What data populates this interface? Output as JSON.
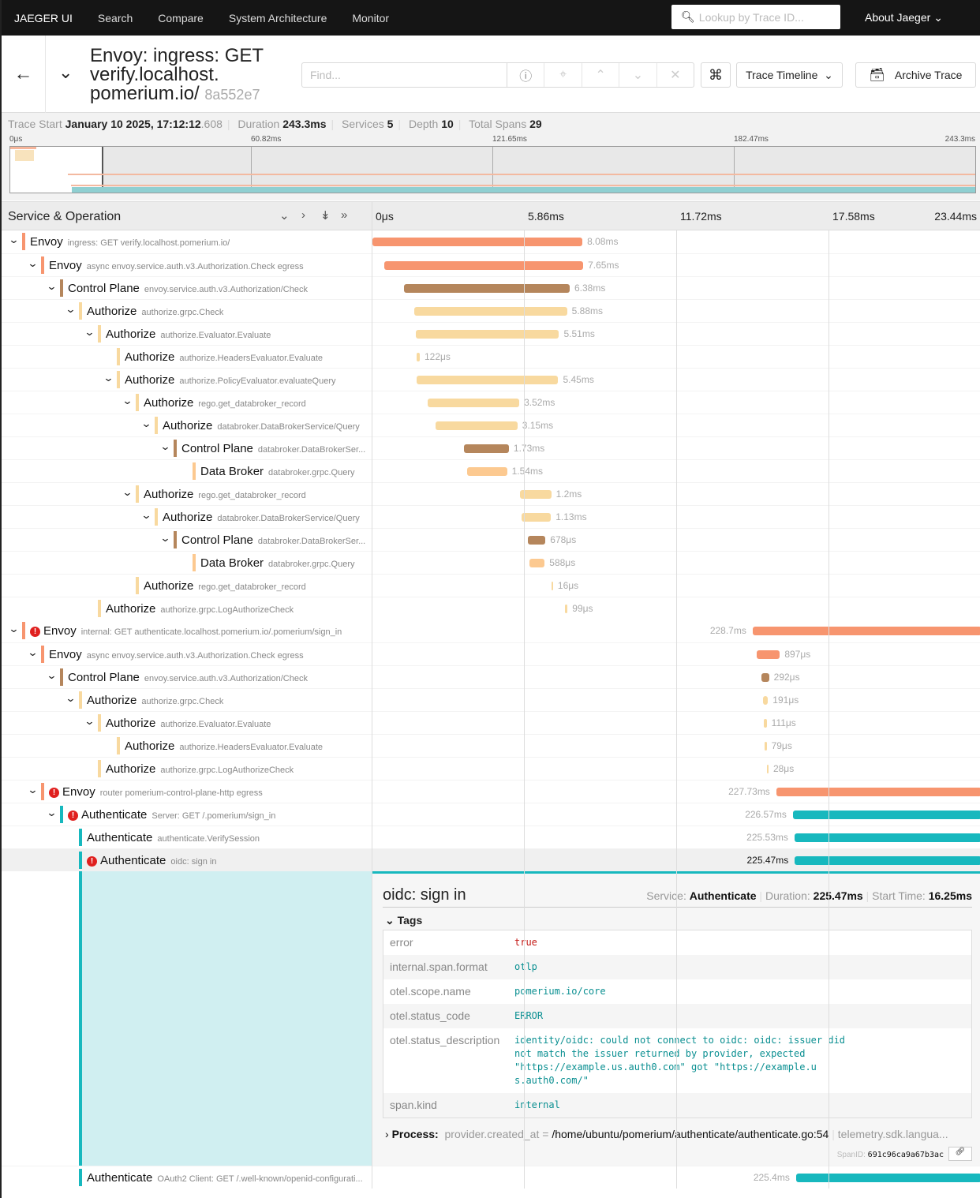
{
  "nav": {
    "brand": "JAEGER UI",
    "links": [
      "Search",
      "Compare",
      "System Architecture",
      "Monitor"
    ],
    "lookup_placeholder": "Lookup by Trace ID...",
    "about": "About Jaeger"
  },
  "header": {
    "title": "Envoy: ingress: GET verify.localhost. pomerium.io/",
    "trace_id": "8a552e7",
    "find_placeholder": "Find...",
    "view_select": "Trace Timeline",
    "archive": "Archive Trace"
  },
  "summary": {
    "trace_start_label": "Trace Start",
    "trace_start": "January 10 2025, 17:12:12",
    "trace_start_ms": ".608",
    "duration_label": "Duration",
    "duration": "243.3ms",
    "services_label": "Services",
    "services": "5",
    "depth_label": "Depth",
    "depth": "10",
    "spans_label": "Total Spans",
    "spans": "29"
  },
  "minimap": {
    "ticks": [
      "0μs",
      "60.82ms",
      "121.65ms",
      "182.47ms",
      "243.3ms"
    ]
  },
  "timeline": {
    "column_title": "Service & Operation",
    "ticks": [
      "0μs",
      "5.86ms",
      "11.72ms",
      "17.58ms",
      "23.44ms"
    ],
    "tick_ms": [
      0,
      5.86,
      11.72,
      17.58,
      23.44
    ]
  },
  "colors": {
    "Envoy": "#f7956f",
    "Control Plane": "#b5865c",
    "Authorize": "#f8d99f",
    "Data Broker": "#fcc990",
    "Authenticate": "#17b8be",
    "error": "#e0201f"
  },
  "spans": [
    {
      "service": "Envoy",
      "op": "ingress: GET verify.localhost.pomerium.io/",
      "depth": 0,
      "chev": true,
      "err": false,
      "start": 0,
      "dur": 8.08,
      "label": "8.08ms"
    },
    {
      "service": "Envoy",
      "op": "async envoy.service.auth.v3.Authorization.Check egress",
      "depth": 1,
      "chev": true,
      "err": false,
      "start": 0.46,
      "dur": 7.65,
      "label": "7.65ms"
    },
    {
      "service": "Control Plane",
      "op": "envoy.service.auth.v3.Authorization/Check",
      "depth": 2,
      "chev": true,
      "err": false,
      "start": 1.21,
      "dur": 6.38,
      "label": "6.38ms"
    },
    {
      "service": "Authorize",
      "op": "authorize.grpc.Check",
      "depth": 3,
      "chev": true,
      "err": false,
      "start": 1.61,
      "dur": 5.88,
      "label": "5.88ms"
    },
    {
      "service": "Authorize",
      "op": "authorize.Evaluator.Evaluate",
      "depth": 4,
      "chev": true,
      "err": false,
      "start": 1.67,
      "dur": 5.51,
      "label": "5.51ms"
    },
    {
      "service": "Authorize",
      "op": "authorize.HeadersEvaluator.Evaluate",
      "depth": 5,
      "chev": false,
      "err": false,
      "start": 1.7,
      "dur": 0.122,
      "label": "122μs"
    },
    {
      "service": "Authorize",
      "op": "authorize.PolicyEvaluator.evaluateQuery",
      "depth": 5,
      "chev": true,
      "err": false,
      "start": 1.7,
      "dur": 5.45,
      "label": "5.45ms"
    },
    {
      "service": "Authorize",
      "op": "rego.get_databroker_record",
      "depth": 6,
      "chev": true,
      "err": false,
      "start": 2.13,
      "dur": 3.52,
      "label": "3.52ms"
    },
    {
      "service": "Authorize",
      "op": "databroker.DataBrokerService/Query",
      "depth": 7,
      "chev": true,
      "err": false,
      "start": 2.43,
      "dur": 3.15,
      "label": "3.15ms"
    },
    {
      "service": "Control Plane",
      "op": "databroker.DataBrokerSer...",
      "depth": 8,
      "chev": true,
      "err": false,
      "start": 3.52,
      "dur": 1.73,
      "label": "1.73ms"
    },
    {
      "service": "Data Broker",
      "op": "databroker.grpc.Query",
      "depth": 9,
      "chev": false,
      "err": false,
      "start": 3.64,
      "dur": 1.54,
      "label": "1.54ms"
    },
    {
      "service": "Authorize",
      "op": "rego.get_databroker_record",
      "depth": 6,
      "chev": true,
      "err": false,
      "start": 5.68,
      "dur": 1.2,
      "label": "1.2ms"
    },
    {
      "service": "Authorize",
      "op": "databroker.DataBrokerService/Query",
      "depth": 7,
      "chev": true,
      "err": false,
      "start": 5.74,
      "dur": 1.13,
      "label": "1.13ms"
    },
    {
      "service": "Control Plane",
      "op": "databroker.DataBrokerSer...",
      "depth": 8,
      "chev": true,
      "err": false,
      "start": 5.98,
      "dur": 0.678,
      "label": "678μs"
    },
    {
      "service": "Data Broker",
      "op": "databroker.grpc.Query",
      "depth": 9,
      "chev": false,
      "err": false,
      "start": 6.04,
      "dur": 0.588,
      "label": "588μs"
    },
    {
      "service": "Authorize",
      "op": "rego.get_databroker_record",
      "depth": 6,
      "chev": false,
      "err": false,
      "start": 6.89,
      "dur": 0.016,
      "label": "16μs"
    },
    {
      "service": "Authorize",
      "op": "authorize.grpc.LogAuthorizeCheck",
      "depth": 4,
      "chev": false,
      "err": false,
      "start": 7.41,
      "dur": 0.099,
      "label": "99μs"
    },
    {
      "service": "Envoy",
      "op": "internal: GET authenticate.localhost.pomerium.io/.pomerium/sign_in",
      "depth": 0,
      "chev": true,
      "err": true,
      "start": 14.63,
      "dur": 228.7,
      "label": "228.7ms"
    },
    {
      "service": "Envoy",
      "op": "async envoy.service.auth.v3.Authorization.Check egress",
      "depth": 1,
      "chev": true,
      "err": false,
      "start": 14.78,
      "dur": 0.897,
      "label": "897μs"
    },
    {
      "service": "Control Plane",
      "op": "envoy.service.auth.v3.Authorization/Check",
      "depth": 2,
      "chev": true,
      "err": false,
      "start": 14.97,
      "dur": 0.292,
      "label": "292μs"
    },
    {
      "service": "Authorize",
      "op": "authorize.grpc.Check",
      "depth": 3,
      "chev": true,
      "err": false,
      "start": 15.03,
      "dur": 0.191,
      "label": "191μs"
    },
    {
      "service": "Authorize",
      "op": "authorize.Evaluator.Evaluate",
      "depth": 4,
      "chev": true,
      "err": false,
      "start": 15.06,
      "dur": 0.111,
      "label": "111μs"
    },
    {
      "service": "Authorize",
      "op": "authorize.HeadersEvaluator.Evaluate",
      "depth": 5,
      "chev": false,
      "err": false,
      "start": 15.09,
      "dur": 0.079,
      "label": "79μs"
    },
    {
      "service": "Authorize",
      "op": "authorize.grpc.LogAuthorizeCheck",
      "depth": 4,
      "chev": false,
      "err": false,
      "start": 15.18,
      "dur": 0.028,
      "label": "28μs"
    },
    {
      "service": "Envoy",
      "op": "router pomerium-control-plane-http egress",
      "depth": 1,
      "chev": true,
      "err": true,
      "start": 15.54,
      "dur": 227.73,
      "label": "227.73ms"
    },
    {
      "service": "Authenticate",
      "op": "Server: GET /.pomerium/sign_in",
      "depth": 2,
      "chev": true,
      "err": true,
      "start": 16.18,
      "dur": 226.57,
      "label": "226.57ms"
    },
    {
      "service": "Authenticate",
      "op": "authenticate.VerifySession",
      "depth": 3,
      "chev": false,
      "err": false,
      "start": 16.24,
      "dur": 225.53,
      "label": "225.53ms"
    },
    {
      "service": "Authenticate",
      "op": "oidc: sign in",
      "depth": 3,
      "chev": false,
      "err": true,
      "start": 16.25,
      "dur": 225.47,
      "label": "225.47ms",
      "selected": true
    },
    {
      "service": "Authenticate",
      "op": "OAuth2 Client: GET /.well-known/openid-configurati...",
      "depth": 3,
      "chev": false,
      "err": false,
      "start": 16.3,
      "dur": 225.4,
      "label": "225.4ms"
    }
  ],
  "detail": {
    "title": "oidc: sign in",
    "service_label": "Service:",
    "service": "Authenticate",
    "duration_label": "Duration:",
    "duration": "225.47ms",
    "start_label": "Start Time:",
    "start": "16.25ms",
    "tags_label": "Tags",
    "tags": [
      {
        "k": "error",
        "v": "true"
      },
      {
        "k": "internal.span.format",
        "v": "otlp"
      },
      {
        "k": "otel.scope.name",
        "v": "pomerium.io/core"
      },
      {
        "k": "otel.status_code",
        "v": "ERROR"
      },
      {
        "k": "otel.status_description",
        "v": "identity/oidc: could not connect to oidc: oidc: issuer did not match the issuer returned by provider, expected \"https://example.us.auth0.com\" got \"https://example.u s.auth0.com/\""
      },
      {
        "k": "span.kind",
        "v": "internal"
      }
    ],
    "process_label": "Process:",
    "process_key": "provider.created_at",
    "process_value": "/home/ubuntu/pomerium/authenticate/authenticate.go:54",
    "process_more": "telemetry.sdk.langua...",
    "spanid_label": "SpanID:",
    "spanid": "691c96ca9a67b3ac"
  }
}
